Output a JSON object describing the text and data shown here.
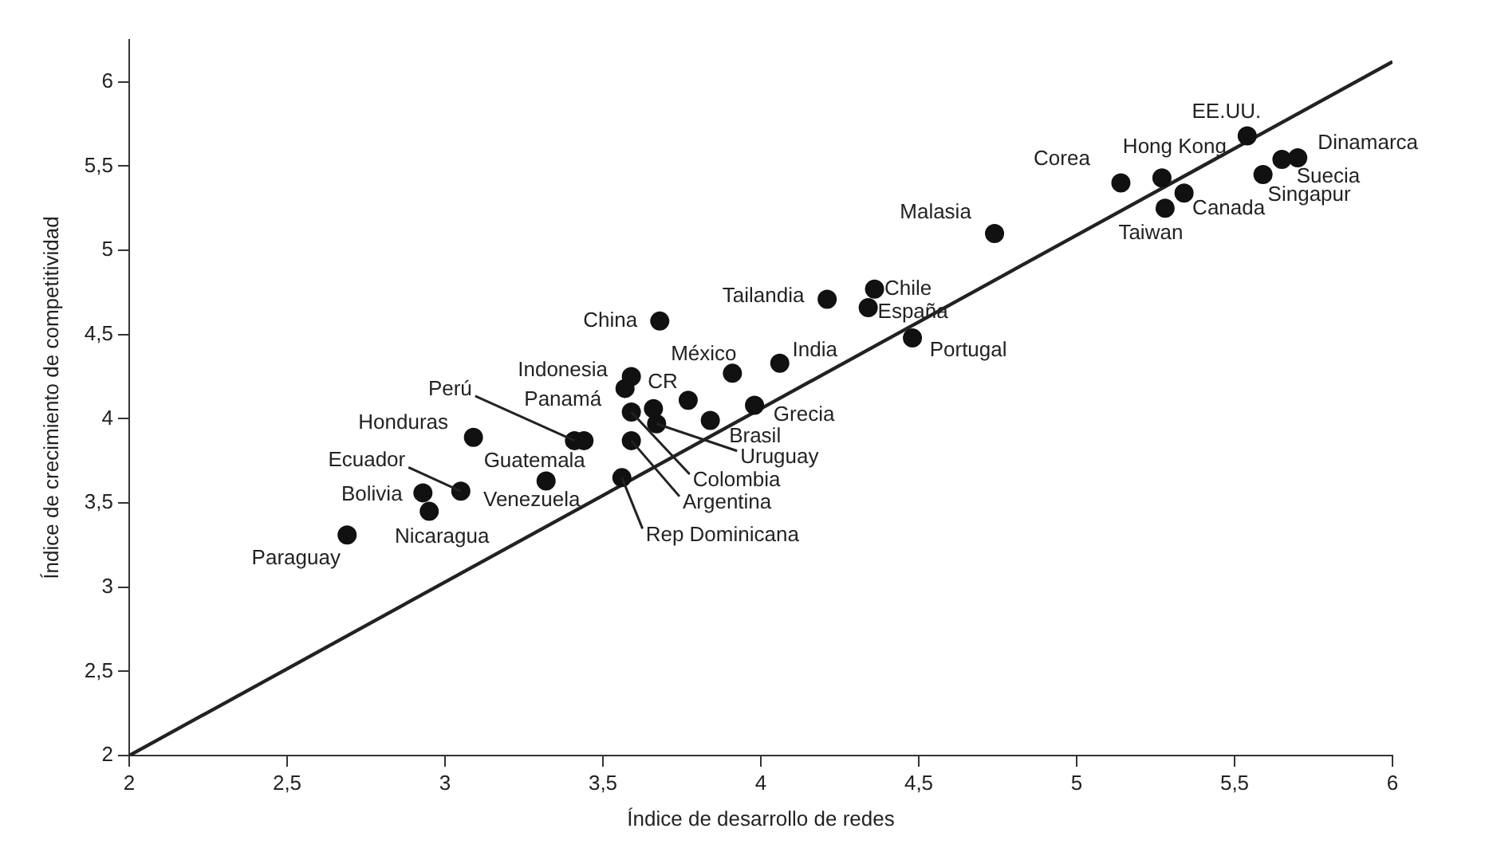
{
  "chart_data": {
    "type": "scatter",
    "xlabel": "Índice de desarrollo de redes",
    "ylabel": "Índice de crecimiento de competitividad",
    "xlim": [
      2,
      6
    ],
    "ylim": [
      2,
      6.25
    ],
    "xticks": [
      2,
      {
        "value": 2.5,
        "label": "2,5"
      },
      3,
      {
        "value": 3.5,
        "label": "3,5"
      },
      4,
      {
        "value": 4.5,
        "label": "4,5"
      },
      5,
      {
        "value": 5.5,
        "label": "5,5"
      },
      6
    ],
    "yticks": [
      2,
      {
        "value": 2.5,
        "label": "2,5"
      },
      3,
      {
        "value": 3.5,
        "label": "3,5"
      },
      4,
      {
        "value": 4.5,
        "label": "4,5"
      },
      5,
      {
        "value": 5.5,
        "label": "5,5"
      },
      6
    ],
    "grid": false,
    "legend": false,
    "marker": "circle",
    "series": [
      {
        "color": "#111111",
        "x": [
          2.69,
          2.93,
          2.95,
          3.05,
          3.32,
          3.09,
          3.44,
          3.41,
          3.59,
          3.57,
          3.68,
          3.91,
          3.77,
          3.59,
          3.59,
          3.56,
          3.67,
          3.84,
          3.98,
          4.06,
          4.21,
          4.36,
          4.34,
          4.48,
          4.74,
          5.14,
          5.27,
          5.34,
          5.28,
          5.54,
          5.7,
          5.65,
          5.59,
          3.66
        ],
        "values": [
          3.31,
          3.56,
          3.45,
          3.57,
          3.63,
          3.89,
          3.87,
          3.87,
          4.25,
          4.18,
          4.58,
          4.27,
          4.11,
          4.04,
          3.87,
          3.65,
          3.97,
          3.99,
          4.08,
          4.33,
          4.71,
          4.77,
          4.66,
          4.48,
          5.1,
          5.4,
          5.43,
          5.34,
          5.25,
          5.68,
          5.55,
          5.54,
          5.45,
          4.06
        ]
      },
      {
        "type": "line",
        "color": "#222222",
        "x": [
          2,
          6
        ],
        "values": [
          2,
          6.12
        ],
        "marker": "none",
        "line_style": "solid"
      }
    ],
    "annotations": [
      {
        "text": "Paraguay",
        "x": 2.69,
        "y": 3.31
      },
      {
        "text": "Bolivia",
        "x": 2.93,
        "y": 3.56
      },
      {
        "text": "Nicaragua",
        "x": 2.95,
        "y": 3.45
      },
      {
        "text": "Ecuador",
        "x": 3.05,
        "y": 3.57
      },
      {
        "text": "Venezuela",
        "x": 3.32,
        "y": 3.63
      },
      {
        "text": "Honduras",
        "x": 3.09,
        "y": 3.89
      },
      {
        "text": "Guatemala",
        "x": 3.44,
        "y": 3.87
      },
      {
        "text": "Perú",
        "x": 3.41,
        "y": 3.87
      },
      {
        "text": "Indonesia",
        "x": 3.59,
        "y": 4.25
      },
      {
        "text": "Panamá",
        "x": 3.57,
        "y": 4.18
      },
      {
        "text": "China",
        "x": 3.68,
        "y": 4.58
      },
      {
        "text": "México",
        "x": 3.91,
        "y": 4.27
      },
      {
        "text": "CR",
        "x": 3.77,
        "y": 4.11
      },
      {
        "text": "Colombia",
        "x": 3.59,
        "y": 4.04
      },
      {
        "text": "Argentina",
        "x": 3.59,
        "y": 3.87
      },
      {
        "text": "Rep Dominicana",
        "x": 3.56,
        "y": 3.65
      },
      {
        "text": "Uruguay",
        "x": 3.67,
        "y": 3.97
      },
      {
        "text": "Brasil",
        "x": 3.84,
        "y": 3.99
      },
      {
        "text": "Grecia",
        "x": 3.98,
        "y": 4.08
      },
      {
        "text": "India",
        "x": 4.06,
        "y": 4.33
      },
      {
        "text": "Tailandia",
        "x": 4.21,
        "y": 4.71
      },
      {
        "text": "Chile",
        "x": 4.36,
        "y": 4.77
      },
      {
        "text": "España",
        "x": 4.34,
        "y": 4.66
      },
      {
        "text": "Portugal",
        "x": 4.48,
        "y": 4.48
      },
      {
        "text": "Malasia",
        "x": 4.74,
        "y": 5.1
      },
      {
        "text": "Corea",
        "x": 5.14,
        "y": 5.4
      },
      {
        "text": "Hong Kong",
        "x": 5.27,
        "y": 5.43
      },
      {
        "text": "Canada",
        "x": 5.34,
        "y": 5.34
      },
      {
        "text": "Taiwan",
        "x": 5.28,
        "y": 5.25
      },
      {
        "text": "EE.UU.",
        "x": 5.54,
        "y": 5.68
      },
      {
        "text": "Dinamarca",
        "x": 5.7,
        "y": 5.55
      },
      {
        "text": "Suecia",
        "x": 5.65,
        "y": 5.54
      },
      {
        "text": "Singapur",
        "x": 5.59,
        "y": 5.45
      }
    ]
  }
}
